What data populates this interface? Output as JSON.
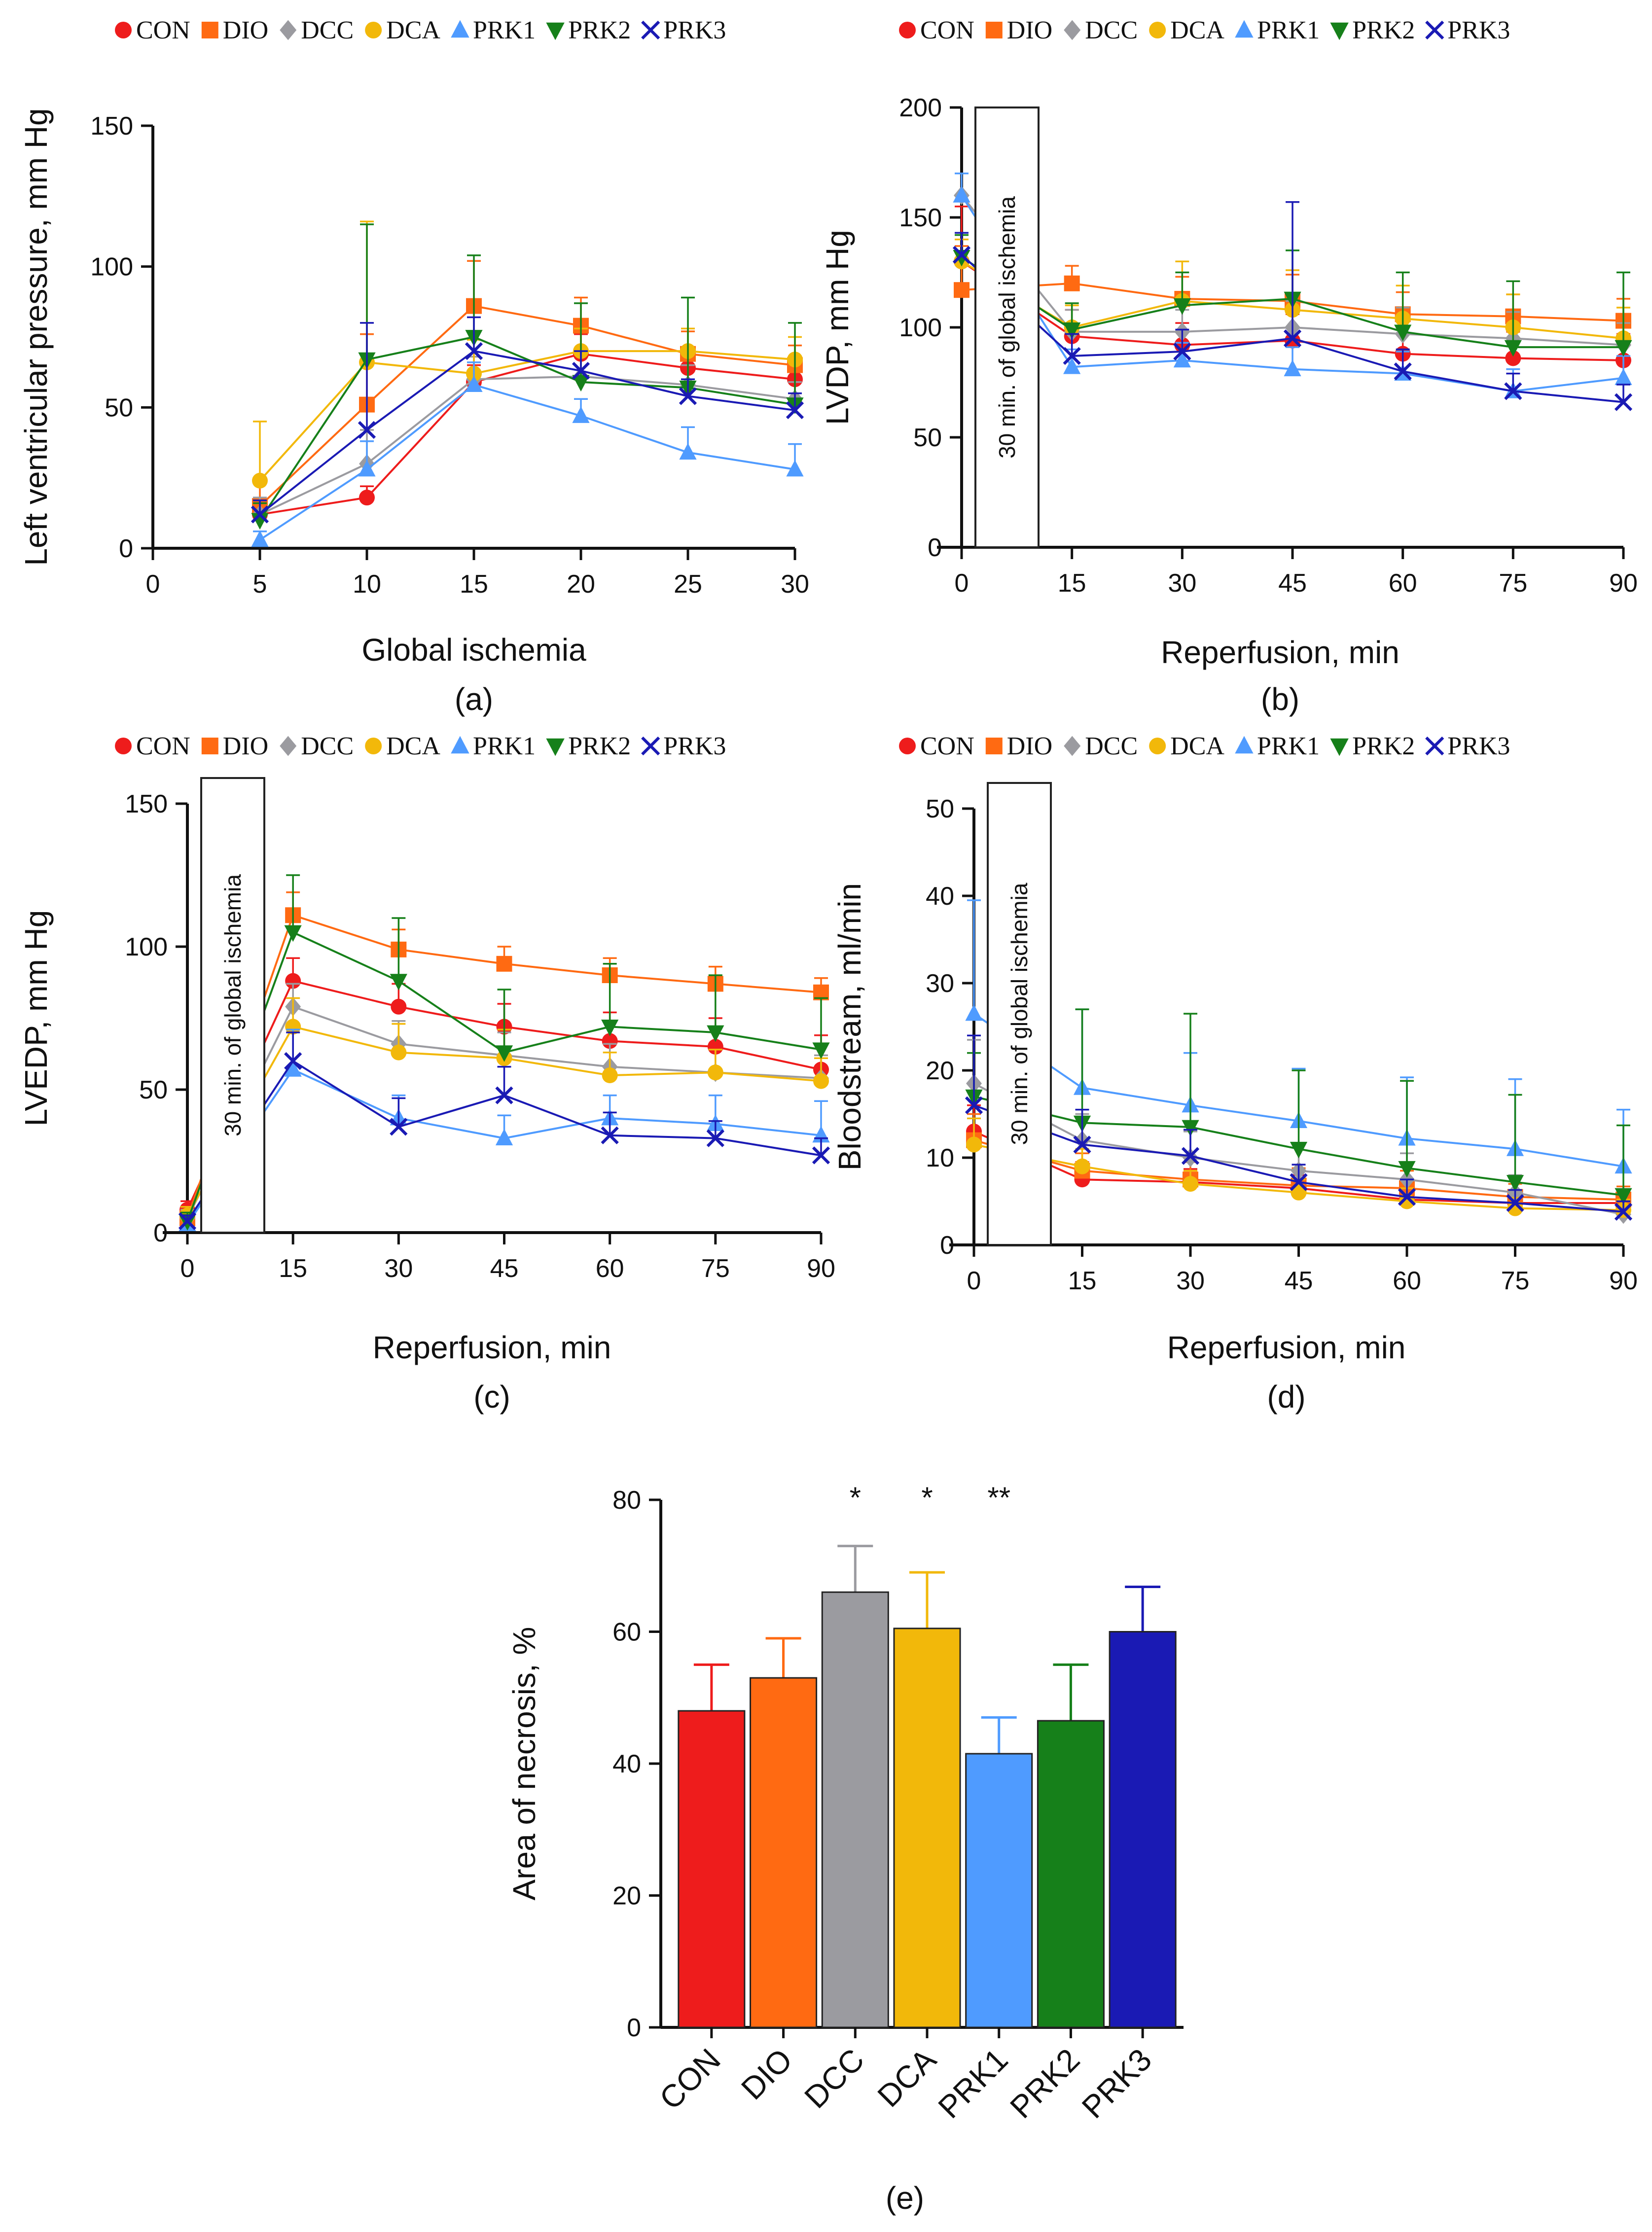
{
  "colors": {
    "CON": "#ee1c1c",
    "DIO": "#ff6a12",
    "DCC": "#9b9ba0",
    "DCA": "#f2b80a",
    "PRK1": "#4f9bff",
    "PRK2": "#16801a",
    "PRK3": "#1a1ab4"
  },
  "legend": {
    "items": [
      {
        "name": "CON",
        "marker": "circle"
      },
      {
        "name": "DIO",
        "marker": "square"
      },
      {
        "name": "DCC",
        "marker": "diamond"
      },
      {
        "name": "DCA",
        "marker": "circle"
      },
      {
        "name": "PRK1",
        "marker": "triangle-up"
      },
      {
        "name": "PRK2",
        "marker": "triangle-down"
      },
      {
        "name": "PRK3",
        "marker": "x"
      }
    ]
  },
  "chart_data": [
    {
      "id": "a",
      "type": "line",
      "caption": "(a)",
      "xlabel": "Global ischemia",
      "ylabel": "Left ventricular pressure, mm Hg",
      "xlim": [
        0,
        30
      ],
      "ylim": [
        0,
        150
      ],
      "xticks": [
        "0",
        "5",
        "10",
        "15",
        "20",
        "25",
        "30"
      ],
      "yticks": [
        "0",
        "50",
        "100",
        "150"
      ],
      "annotation": "",
      "x": [
        5,
        10,
        15,
        20,
        25,
        30
      ],
      "series": [
        {
          "name": "CON",
          "values": [
            12,
            18,
            59,
            69,
            64,
            60
          ],
          "err": [
            4,
            4,
            6,
            7,
            6,
            5
          ]
        },
        {
          "name": "DIO",
          "values": [
            15,
            51,
            86,
            79,
            69,
            65
          ],
          "err": [
            10,
            25,
            16,
            10,
            8,
            7
          ]
        },
        {
          "name": "DCC",
          "values": [
            12,
            30,
            60,
            61,
            58,
            53
          ],
          "err": [
            6,
            12,
            8,
            8,
            7,
            6
          ]
        },
        {
          "name": "DCA",
          "values": [
            24,
            66,
            62,
            70,
            70,
            67
          ],
          "err": [
            21,
            50,
            12,
            8,
            8,
            8
          ]
        },
        {
          "name": "PRK1",
          "values": [
            3,
            28,
            58,
            47,
            34,
            28
          ],
          "err": [
            3,
            10,
            8,
            6,
            9,
            9
          ]
        },
        {
          "name": "PRK2",
          "values": [
            10,
            67,
            75,
            59,
            57,
            51
          ],
          "err": [
            6,
            48,
            29,
            28,
            32,
            29
          ]
        },
        {
          "name": "PRK3",
          "values": [
            12,
            42,
            70,
            63,
            54,
            49
          ],
          "err": [
            5,
            38,
            12,
            7,
            6,
            6
          ]
        }
      ]
    },
    {
      "id": "b",
      "type": "line",
      "caption": "(b)",
      "xlabel": "Reperfusion, min",
      "ylabel": "LVDP, mm Hg",
      "xlim": [
        0,
        90
      ],
      "ylim": [
        0,
        200
      ],
      "xticks": [
        "0",
        "15",
        "30",
        "45",
        "60",
        "75",
        "90"
      ],
      "yticks": [
        "0",
        "50",
        "100",
        "150",
        "200"
      ],
      "annotation": "30 min. of global ischemia",
      "x": [
        0,
        15,
        30,
        45,
        60,
        75,
        90
      ],
      "series": [
        {
          "name": "CON",
          "values": [
            130,
            96,
            92,
            94,
            88,
            86,
            85
          ],
          "err": [
            25,
            12,
            10,
            12,
            12,
            12,
            12
          ]
        },
        {
          "name": "DIO",
          "values": [
            117,
            120,
            113,
            112,
            106,
            105,
            103
          ],
          "err": [
            20,
            8,
            10,
            12,
            10,
            10,
            10
          ]
        },
        {
          "name": "DCC",
          "values": [
            160,
            98,
            98,
            100,
            97,
            95,
            92
          ],
          "err": [
            10,
            10,
            10,
            12,
            12,
            12,
            10
          ]
        },
        {
          "name": "DCA",
          "values": [
            130,
            100,
            112,
            108,
            104,
            100,
            95
          ],
          "err": [
            10,
            10,
            18,
            18,
            15,
            15,
            14
          ]
        },
        {
          "name": "PRK1",
          "values": [
            160,
            82,
            85,
            81,
            79,
            71,
            77
          ],
          "err": [
            10,
            8,
            8,
            10,
            10,
            10,
            10
          ]
        },
        {
          "name": "PRK2",
          "values": [
            132,
            99,
            110,
            113,
            98,
            91,
            91
          ],
          "err": [
            10,
            12,
            15,
            22,
            27,
            30,
            34
          ]
        },
        {
          "name": "PRK3",
          "values": [
            133,
            87,
            89,
            95,
            80,
            71,
            66
          ],
          "err": [
            10,
            10,
            10,
            62,
            10,
            8,
            8
          ]
        }
      ]
    },
    {
      "id": "c",
      "type": "line",
      "caption": "(c)",
      "xlabel": "Reperfusion, min",
      "ylabel": "LVEDP, mm Hg",
      "xlim": [
        0,
        90
      ],
      "ylim": [
        0,
        150
      ],
      "xticks": [
        "0",
        "15",
        "30",
        "45",
        "60",
        "75",
        "90"
      ],
      "yticks": [
        "0",
        "50",
        "100",
        "150"
      ],
      "annotation": "30 min. of global ischemia",
      "x": [
        0,
        15,
        30,
        45,
        60,
        75,
        90
      ],
      "series": [
        {
          "name": "CON",
          "values": [
            8,
            88,
            79,
            72,
            67,
            65,
            57
          ],
          "err": [
            3,
            8,
            8,
            8,
            10,
            10,
            12
          ]
        },
        {
          "name": "DIO",
          "values": [
            5,
            111,
            99,
            94,
            90,
            87,
            84
          ],
          "err": [
            3,
            8,
            7,
            6,
            6,
            6,
            5
          ]
        },
        {
          "name": "DCC",
          "values": [
            5,
            79,
            66,
            62,
            58,
            56,
            54
          ],
          "err": [
            3,
            8,
            8,
            8,
            8,
            8,
            8
          ]
        },
        {
          "name": "DCA",
          "values": [
            6,
            72,
            63,
            61,
            55,
            56,
            53
          ],
          "err": [
            3,
            10,
            10,
            10,
            8,
            8,
            8
          ]
        },
        {
          "name": "PRK1",
          "values": [
            3,
            57,
            40,
            33,
            40,
            38,
            34
          ],
          "err": [
            2,
            14,
            8,
            8,
            8,
            10,
            12
          ]
        },
        {
          "name": "PRK2",
          "values": [
            4,
            105,
            88,
            63,
            72,
            70,
            64
          ],
          "err": [
            3,
            20,
            22,
            22,
            22,
            20,
            18
          ]
        },
        {
          "name": "PRK3",
          "values": [
            4,
            60,
            37,
            48,
            34,
            33,
            27
          ],
          "err": [
            2,
            10,
            10,
            10,
            8,
            6,
            6
          ]
        }
      ]
    },
    {
      "id": "d",
      "type": "line",
      "caption": "(d)",
      "xlabel": "Reperfusion, min",
      "ylabel": "Bloodstream, ml/min",
      "xlim": [
        0,
        90
      ],
      "ylim": [
        0,
        50
      ],
      "xticks": [
        "0",
        "15",
        "30",
        "45",
        "60",
        "75",
        "90"
      ],
      "yticks": [
        "0",
        "10",
        "20",
        "30",
        "40",
        "50"
      ],
      "annotation": "30 min. of global ischemia",
      "x": [
        0,
        15,
        30,
        45,
        60,
        75,
        90
      ],
      "series": [
        {
          "name": "CON",
          "values": [
            13,
            7.5,
            7.2,
            6.5,
            5.2,
            4.8,
            4.8
          ],
          "err": [
            3,
            2,
            1.5,
            1.5,
            1.5,
            1.2,
            1.2
          ]
        },
        {
          "name": "DIO",
          "values": [
            12,
            8.5,
            7.5,
            6.8,
            6.5,
            5.5,
            5.2
          ],
          "err": [
            3,
            2,
            2,
            2,
            2,
            1.5,
            1.5
          ]
        },
        {
          "name": "DCC",
          "values": [
            18.5,
            12,
            10,
            8.5,
            7.5,
            6,
            3.5
          ],
          "err": [
            5,
            3,
            3,
            3,
            3,
            2,
            1.5
          ]
        },
        {
          "name": "DCA",
          "values": [
            11.5,
            9,
            7,
            6,
            5,
            4.2,
            4
          ],
          "err": [
            3,
            2,
            1.5,
            1.5,
            1.5,
            1.2,
            1.2
          ]
        },
        {
          "name": "PRK1",
          "values": [
            26.5,
            18,
            16,
            14.2,
            12.2,
            11,
            9
          ],
          "err": [
            13,
            9,
            6,
            6,
            7,
            8,
            6.5
          ]
        },
        {
          "name": "PRK2",
          "values": [
            17,
            14,
            13.5,
            11,
            8.8,
            7.2,
            5.7
          ],
          "err": [
            5,
            13,
            13,
            9,
            10,
            10,
            8
          ]
        },
        {
          "name": "PRK3",
          "values": [
            16,
            11.5,
            10.2,
            7.2,
            5.5,
            4.8,
            3.8
          ],
          "err": [
            8,
            4,
            3,
            2,
            2,
            1.5,
            1.2
          ]
        }
      ]
    },
    {
      "id": "e",
      "type": "bar",
      "caption": "(e)",
      "xlabel": "",
      "ylabel": "Area of necrosis, %",
      "ylim": [
        0,
        80
      ],
      "yticks": [
        "0",
        "20",
        "40",
        "60",
        "80"
      ],
      "categories": [
        "CON",
        "DIO",
        "DCC",
        "DCA",
        "PRK1",
        "PRK2",
        "PRK3"
      ],
      "values": [
        48,
        53,
        66,
        60.5,
        41.5,
        46.5,
        60
      ],
      "err": [
        7,
        6,
        7,
        8.5,
        5.5,
        8.5,
        6.8
      ],
      "significance": [
        "",
        "",
        "*",
        "*",
        "**",
        "",
        ""
      ]
    }
  ]
}
